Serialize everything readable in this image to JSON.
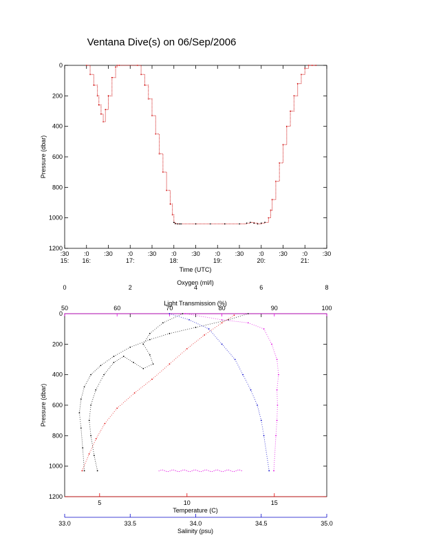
{
  "title": "Ventana Dive(s) on 06/Sep/2006",
  "colors": {
    "depth": "#d01010",
    "oxygen": "#000000",
    "light": "#e000e0",
    "temperature": "#e00000",
    "salinity": "#0000c8"
  },
  "chart_data": [
    {
      "type": "line",
      "title": "Ventana Dive(s) on 06/Sep/2006",
      "xlabel": "Time (UTC)",
      "ylabel": "Pressure (dbar)",
      "ylim": [
        1200,
        0
      ],
      "x_unit": "minutes after 15:30 UTC",
      "xlim": [
        0,
        360
      ],
      "yticks": [
        "0",
        "200",
        "400",
        "600",
        "800",
        "1000",
        "1200"
      ],
      "xticks_minute": [
        ":30",
        ":0",
        ":30",
        ":0",
        ":30",
        ":0",
        ":30",
        ":0",
        ":30",
        ":0",
        ":30",
        ":0",
        ":30"
      ],
      "xticks_hour": [
        "15:",
        "16:",
        "",
        "17:",
        "",
        "18:",
        "",
        "19:",
        "",
        "20:",
        "",
        "21:",
        ""
      ],
      "series": [
        {
          "x": [
            30,
            35,
            40,
            45,
            47,
            50,
            53,
            56,
            60,
            65,
            70,
            72,
            75,
            100,
            105,
            110,
            115,
            120,
            125,
            130,
            135,
            140,
            145,
            148,
            150,
            152,
            155,
            158,
            160,
            180,
            200,
            220,
            240,
            250,
            255,
            260,
            265,
            270,
            275,
            280,
            283,
            285,
            290,
            295,
            300,
            305,
            310,
            315,
            320,
            325,
            330,
            335,
            340,
            345
          ],
          "y": [
            0,
            60,
            130,
            200,
            260,
            320,
            370,
            290,
            200,
            80,
            10,
            0,
            0,
            0,
            60,
            130,
            220,
            330,
            450,
            580,
            700,
            820,
            910,
            980,
            1030,
            1038,
            1040,
            1040,
            1040,
            1040,
            1040,
            1040,
            1040,
            1035,
            1030,
            1035,
            1040,
            1035,
            1030,
            1000,
            950,
            880,
            760,
            640,
            520,
            400,
            300,
            200,
            120,
            60,
            20,
            0,
            0,
            0
          ]
        }
      ]
    },
    {
      "type": "scatter",
      "ylabel": "Pressure (dbar)",
      "ylim": [
        1200,
        0
      ],
      "yticks": [
        "0",
        "200",
        "400",
        "600",
        "800",
        "1000",
        "1200"
      ],
      "axes": {
        "oxygen": {
          "label": "Oxygen (ml/l)",
          "range": [
            0,
            8
          ],
          "ticks": [
            "0",
            "2",
            "4",
            "6",
            "8"
          ]
        },
        "light": {
          "label": "Light Transmission (%)",
          "range": [
            50,
            100
          ],
          "ticks": [
            "50",
            "60",
            "70",
            "80",
            "90",
            "100"
          ]
        },
        "temperature": {
          "label": "Temperature (C)",
          "range": [
            3,
            18
          ],
          "ticks": [
            "5",
            "10",
            "15"
          ]
        },
        "salinity": {
          "label": "Salinity (psu)",
          "range": [
            33.0,
            35.0
          ],
          "ticks": [
            "33.0",
            "33.5",
            "34.0",
            "34.5",
            "35.0"
          ]
        }
      },
      "series": [
        {
          "name": "Oxygen (ml/l)",
          "axis": "oxygen",
          "x": [
            5.6,
            5.0,
            4.0,
            3.2,
            2.6,
            2.0,
            1.5,
            1.1,
            0.8,
            0.6,
            0.5,
            0.45,
            0.5,
            0.55,
            0.6
          ],
          "y": [
            0,
            40,
            90,
            130,
            170,
            220,
            280,
            340,
            400,
            480,
            560,
            650,
            750,
            880,
            1030
          ]
        },
        {
          "name": "Oxygen (ml/l)",
          "axis": "oxygen",
          "x": [
            3.6,
            3.0,
            2.6,
            2.4,
            2.6,
            2.7,
            2.4,
            2.1,
            1.8,
            1.5,
            1.2,
            0.95,
            0.8,
            0.75,
            0.8,
            0.9,
            1.0
          ],
          "y": [
            0,
            60,
            130,
            200,
            270,
            330,
            360,
            320,
            280,
            320,
            400,
            500,
            600,
            700,
            800,
            930,
            1030
          ]
        },
        {
          "name": "Light Transmission (%)",
          "axis": "light",
          "x": [
            73,
            80,
            85,
            88,
            89.5,
            90.5,
            90.8,
            90.5,
            90.6,
            90.5,
            90.3,
            89.9
          ],
          "y": [
            0,
            40,
            60,
            100,
            200,
            300,
            400,
            500,
            600,
            700,
            800,
            1030
          ]
        },
        {
          "name": "Temperature (C)",
          "axis": "temperature",
          "x": [
            12.7,
            12.0,
            11.0,
            10.0,
            9.0,
            8.0,
            7.0,
            6.0,
            5.3,
            4.8,
            4.4,
            4.0
          ],
          "y": [
            10,
            60,
            140,
            230,
            330,
            430,
            520,
            620,
            720,
            820,
            920,
            1030
          ]
        },
        {
          "name": "Salinity (psu)",
          "axis": "salinity",
          "x": [
            33.8,
            33.95,
            34.1,
            34.2,
            34.3,
            34.36,
            34.42,
            34.47,
            34.5,
            34.52,
            34.56
          ],
          "y": [
            0,
            40,
            100,
            200,
            300,
            400,
            500,
            600,
            700,
            800,
            1030
          ]
        }
      ]
    }
  ]
}
